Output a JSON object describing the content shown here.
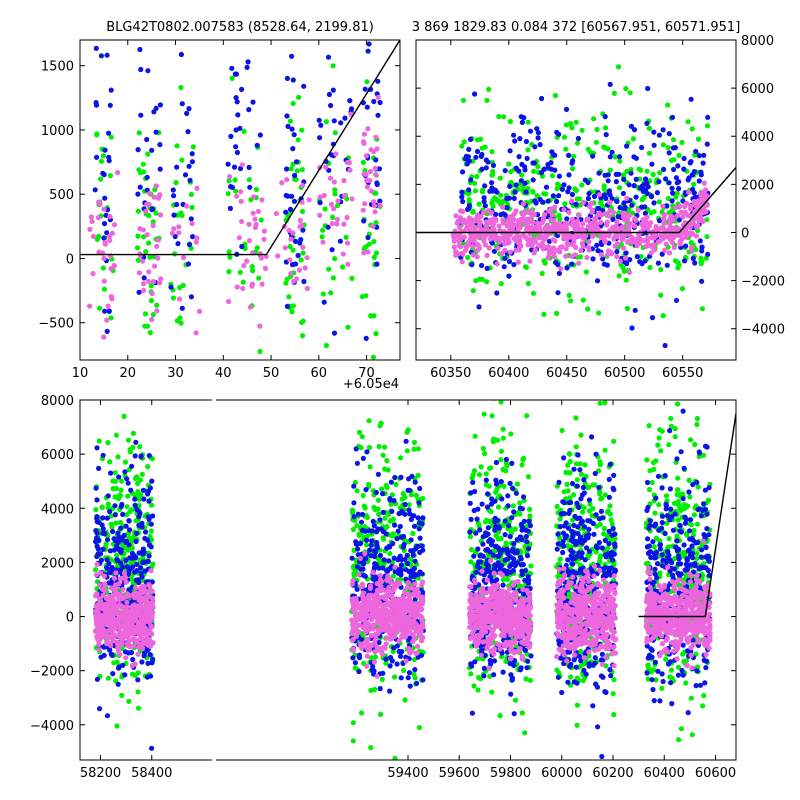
{
  "figure": {
    "title_left": "BLG42T0802.007583 (8528.64, 2199.81)",
    "title_right": "3 869 1829.83 0.084 372 [60567.951, 60571.951]",
    "offset_label": "+6.05e4",
    "colors": {
      "green": "#00ee00",
      "blue": "#0a14e6",
      "pink": "#ee66dd",
      "line": "#000000",
      "axes": "#000000"
    }
  },
  "chart_data": [
    {
      "type": "scatter",
      "panel": "top-left",
      "xlim": [
        10,
        77
      ],
      "ylim": [
        -790,
        1700
      ],
      "x_ticks": [
        10,
        20,
        30,
        40,
        50,
        60,
        70
      ],
      "x_tick_labels": [
        "10",
        "20",
        "30",
        "40",
        "50",
        "60",
        "70"
      ],
      "y_ticks": [
        -500,
        0,
        500,
        1000,
        1500
      ],
      "y_tick_labels": [
        "−500",
        "0",
        "500",
        "1000",
        "1500"
      ],
      "x_offset_note": "+6.05e4",
      "model_line": {
        "x": [
          10,
          49,
          77
        ],
        "y": [
          30,
          30,
          1700
        ]
      },
      "series": [
        {
          "color": "green",
          "x_clusters": [
            [
              13,
              17
            ],
            [
              22,
              27
            ],
            [
              29,
              34
            ],
            [
              41,
              48
            ],
            [
              53,
              57
            ],
            [
              60,
              67
            ],
            [
              69,
              73
            ]
          ],
          "y_center": 200,
          "y_spread": 520
        },
        {
          "color": "blue",
          "x_clusters": [
            [
              13,
              17
            ],
            [
              22,
              27
            ],
            [
              29,
              34
            ],
            [
              41,
              48
            ],
            [
              53,
              57
            ],
            [
              60,
              67
            ],
            [
              69,
              73
            ]
          ],
          "y_center": 700,
          "y_spread": 600
        },
        {
          "color": "pink",
          "x_clusters": [
            [
              12,
              18
            ],
            [
              22,
              27
            ],
            [
              29,
              36
            ],
            [
              41,
              49
            ],
            [
              51,
              58
            ],
            [
              60,
              67
            ],
            [
              69,
              73
            ]
          ],
          "y_center": 100,
          "y_spread": 280
        }
      ]
    },
    {
      "type": "scatter",
      "panel": "top-right",
      "xlim": [
        60320,
        60596
      ],
      "ylim": [
        -5300,
        8000
      ],
      "x_ticks": [
        60350,
        60400,
        60450,
        60500,
        60550
      ],
      "x_tick_labels": [
        "60350",
        "60400",
        "60450",
        "60500",
        "60550"
      ],
      "y_ticks": [
        -4000,
        -2000,
        0,
        2000,
        4000,
        6000,
        8000
      ],
      "y_tick_labels": [
        "−4000",
        "−2000",
        "0",
        "2000",
        "4000",
        "6000",
        "8000"
      ],
      "y_axis_side": "right",
      "model_line": {
        "x": [
          60320,
          60547,
          60596
        ],
        "y": [
          0,
          0,
          2700
        ]
      },
      "series": [
        {
          "color": "green",
          "x_range": [
            60358,
            60572
          ],
          "y_center": 800,
          "y_spread": 2200
        },
        {
          "color": "blue",
          "x_range": [
            60358,
            60572
          ],
          "y_center": 1000,
          "y_spread": 1900
        },
        {
          "color": "pink",
          "x_range": [
            60352,
            60572
          ],
          "y_center": 0,
          "y_spread": 500
        }
      ]
    },
    {
      "type": "scatter",
      "panel": "bottom",
      "xlim": [
        58120,
        60680
      ],
      "ylim": [
        -5300,
        8000
      ],
      "x_ticks": [
        58200,
        58400,
        59400,
        59600,
        59800,
        60000,
        60200,
        60400,
        60600
      ],
      "x_tick_labels": [
        "58200",
        "58400",
        "59400",
        "59600",
        "59800",
        "60000",
        "60200",
        "60400",
        "60600"
      ],
      "y_ticks": [
        -4000,
        -2000,
        0,
        2000,
        4000,
        6000,
        8000
      ],
      "y_tick_labels": [
        "−4000",
        "−2000",
        "0",
        "2000",
        "4000",
        "6000",
        "8000"
      ],
      "model_line": {
        "x": [
          60300,
          60560,
          60680
        ],
        "y": [
          0,
          0,
          7500
        ]
      },
      "seasons": [
        [
          58180,
          58405
        ],
        [
          59180,
          59460
        ],
        [
          59640,
          59880
        ],
        [
          59980,
          60210
        ],
        [
          60330,
          60580
        ]
      ],
      "series": [
        {
          "color": "green",
          "y_center": 1500,
          "y_spread": 2800
        },
        {
          "color": "blue",
          "y_center": 1000,
          "y_spread": 2100
        },
        {
          "color": "pink",
          "y_center": 0,
          "y_spread": 650
        }
      ]
    }
  ]
}
